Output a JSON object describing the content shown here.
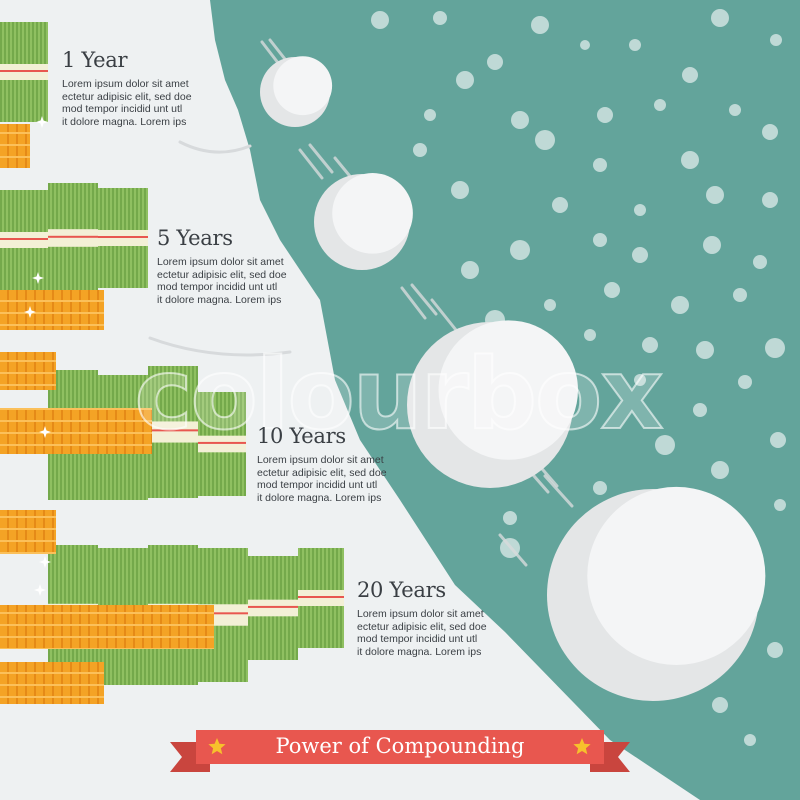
{
  "stages": [
    {
      "title": "1 Year",
      "description": "Lorem ipsum dolor sit amet\nectetur adipisic elit, sed doe\nmod tempor  incidid unt utl\nit dolore  magna. Lorem ips"
    },
    {
      "title": "5 Years",
      "description": "Lorem ipsum dolor sit amet\nectetur adipisic elit, sed doe\nmod tempor  incidid unt utl\nit dolore  magna. Lorem ips"
    },
    {
      "title": "10 Years",
      "description": "Lorem ipsum dolor sit amet\nectetur adipisic elit, sed doe\nmod tempor  incidid unt utl\nit dolore  magna. Lorem ips"
    },
    {
      "title": "20 Years",
      "description": "Lorem ipsum dolor sit amet\nectetur adipisic elit, sed doe\nmod tempor  incidid unt utl\nit dolore  magna. Lorem ips"
    }
  ],
  "banner": {
    "label": "Power of Compounding"
  },
  "watermark": "colourbox",
  "colors": {
    "background": "#eef1f2",
    "hill": "#63a49b",
    "snow": "#e4e6e7",
    "snow_shade": "#f4f5f6",
    "cash": "#8fc061",
    "cash_band": "#f3f0d6",
    "coin": "#f4a325",
    "ribbon": "#e8574f",
    "star": "#f7c12c",
    "text": "#3a3f44"
  }
}
